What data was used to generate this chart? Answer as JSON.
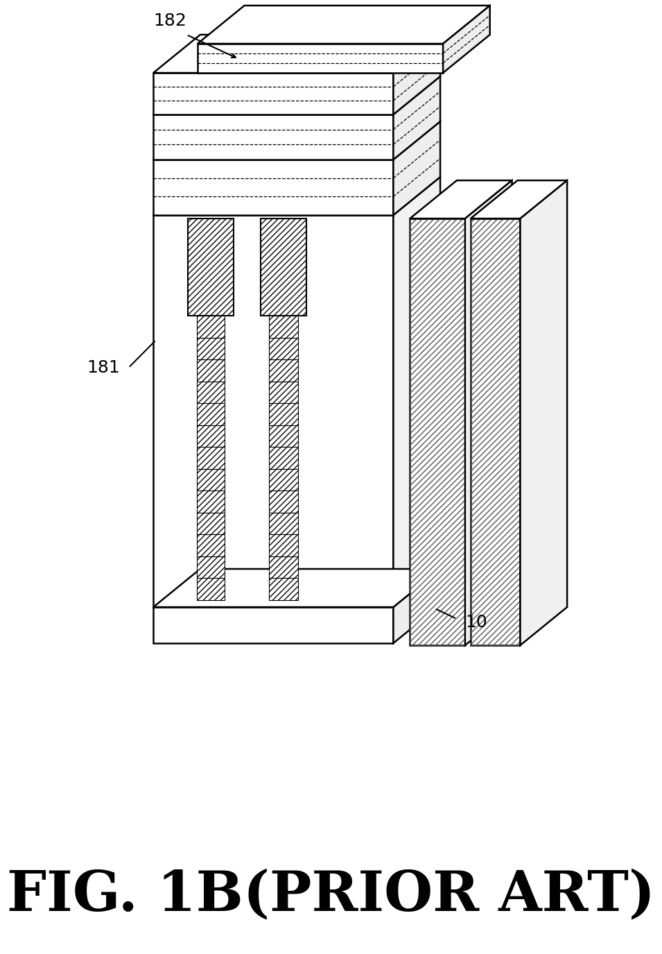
{
  "title": "FIG. 1B(PRIOR ART)",
  "label_182": "182",
  "label_181": "181",
  "label_10": "10",
  "bg_color": "#ffffff",
  "line_color": "#000000"
}
